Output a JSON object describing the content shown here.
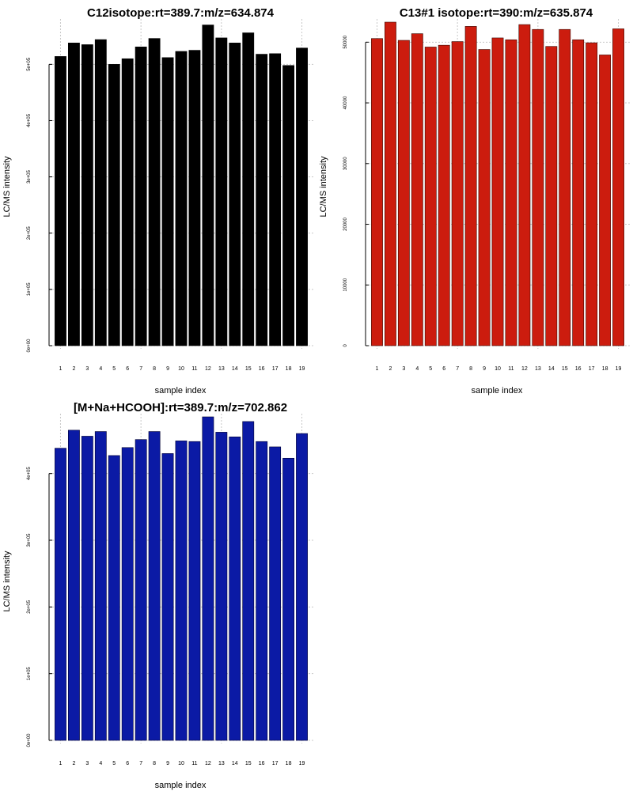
{
  "chart_data": [
    {
      "type": "bar",
      "title": "C12isotope:rt=389.7:m/z=634.874",
      "xlabel": "sample index",
      "ylabel": "LC/MS intensity",
      "categories": [
        "1",
        "2",
        "3",
        "4",
        "5",
        "6",
        "7",
        "8",
        "9",
        "10",
        "11",
        "12",
        "13",
        "14",
        "15",
        "16",
        "17",
        "18",
        "19"
      ],
      "values": [
        514000,
        538000,
        535000,
        544000,
        500000,
        510000,
        531000,
        546000,
        512000,
        523000,
        525000,
        570000,
        547000,
        538000,
        556000,
        518000,
        519000,
        498000,
        529000
      ],
      "ylim": [
        0,
        575000
      ],
      "yticks": [
        0,
        100000,
        200000,
        300000,
        400000,
        500000
      ],
      "ytick_labels": [
        "0e+00",
        "1e+05",
        "2e+05",
        "3e+05",
        "4e+05",
        "5e+05"
      ],
      "color": "#000000",
      "grid": true
    },
    {
      "type": "bar",
      "title": "C13#1 isotope:rt=390:m/z=635.874",
      "xlabel": "sample index",
      "ylabel": "LC/MS intensity",
      "categories": [
        "1",
        "2",
        "3",
        "4",
        "5",
        "6",
        "7",
        "8",
        "9",
        "10",
        "11",
        "12",
        "13",
        "14",
        "15",
        "16",
        "17",
        "18",
        "19"
      ],
      "values": [
        50600,
        53300,
        50300,
        51400,
        49200,
        49500,
        50100,
        52600,
        48800,
        50700,
        50400,
        52900,
        52100,
        49300,
        52100,
        50400,
        49900,
        47900,
        52200
      ],
      "ylim": [
        0,
        53300
      ],
      "yticks": [
        0,
        10000,
        20000,
        30000,
        40000,
        50000
      ],
      "ytick_labels": [
        "0",
        "10000",
        "20000",
        "30000",
        "40000",
        "50000"
      ],
      "color": "#cc1c0e",
      "grid": true
    },
    {
      "type": "bar",
      "title": "[M+Na+HCOOH]:rt=389.7:m/z=702.862",
      "xlabel": "sample index",
      "ylabel": "LC/MS intensity",
      "categories": [
        "1",
        "2",
        "3",
        "4",
        "5",
        "6",
        "7",
        "8",
        "9",
        "10",
        "11",
        "12",
        "13",
        "14",
        "15",
        "16",
        "17",
        "18",
        "19"
      ],
      "values": [
        438000,
        465000,
        456000,
        463000,
        427000,
        439000,
        451000,
        463000,
        430000,
        449000,
        448000,
        485000,
        462000,
        455000,
        478000,
        448000,
        440000,
        423000,
        460000
      ],
      "ylim": [
        0,
        485000
      ],
      "yticks": [
        0,
        100000,
        200000,
        300000,
        400000
      ],
      "ytick_labels": [
        "0e+00",
        "1e+05",
        "2e+05",
        "3e+05",
        "4e+05"
      ],
      "color": "#0b1aa5",
      "grid": true
    }
  ]
}
